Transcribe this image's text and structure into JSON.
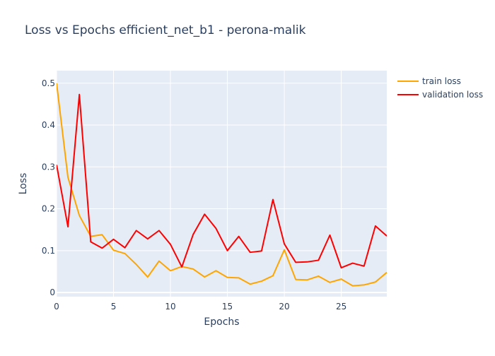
{
  "chart_data": {
    "type": "line",
    "title": "Loss vs Epochs efficient_net_b1 - perona-malik",
    "xlabel": "Epochs",
    "ylabel": "Loss",
    "xlim": [
      0,
      29
    ],
    "ylim": [
      -0.01,
      0.53
    ],
    "x_ticks": [
      0,
      5,
      10,
      15,
      20,
      25
    ],
    "x_tick_labels": [
      "0",
      "5",
      "10",
      "15",
      "20",
      "25"
    ],
    "y_ticks": [
      0,
      0.1,
      0.2,
      0.3,
      0.4,
      0.5
    ],
    "y_tick_labels": [
      "0",
      "0.1",
      "0.2",
      "0.3",
      "0.4",
      "0.5"
    ],
    "grid": true,
    "legend_position": "top-right",
    "x": [
      0,
      1,
      2,
      3,
      4,
      5,
      6,
      7,
      8,
      9,
      10,
      11,
      12,
      13,
      14,
      15,
      16,
      17,
      18,
      19,
      20,
      21,
      22,
      23,
      24,
      25,
      26,
      27,
      28,
      29
    ],
    "series": [
      {
        "name": "train loss",
        "color": "#FFA500",
        "values": [
          0.5,
          0.275,
          0.184,
          0.134,
          0.138,
          0.101,
          0.093,
          0.067,
          0.037,
          0.075,
          0.052,
          0.062,
          0.056,
          0.037,
          0.052,
          0.036,
          0.035,
          0.02,
          0.027,
          0.04,
          0.102,
          0.031,
          0.03,
          0.039,
          0.024,
          0.032,
          0.016,
          0.018,
          0.025,
          0.048
        ]
      },
      {
        "name": "validation loss",
        "color": "#FF0000",
        "values": [
          0.305,
          0.157,
          0.473,
          0.121,
          0.106,
          0.127,
          0.107,
          0.148,
          0.128,
          0.148,
          0.115,
          0.061,
          0.139,
          0.187,
          0.153,
          0.1,
          0.134,
          0.096,
          0.099,
          0.222,
          0.116,
          0.072,
          0.073,
          0.077,
          0.137,
          0.059,
          0.07,
          0.063,
          0.159,
          0.135
        ]
      }
    ]
  }
}
